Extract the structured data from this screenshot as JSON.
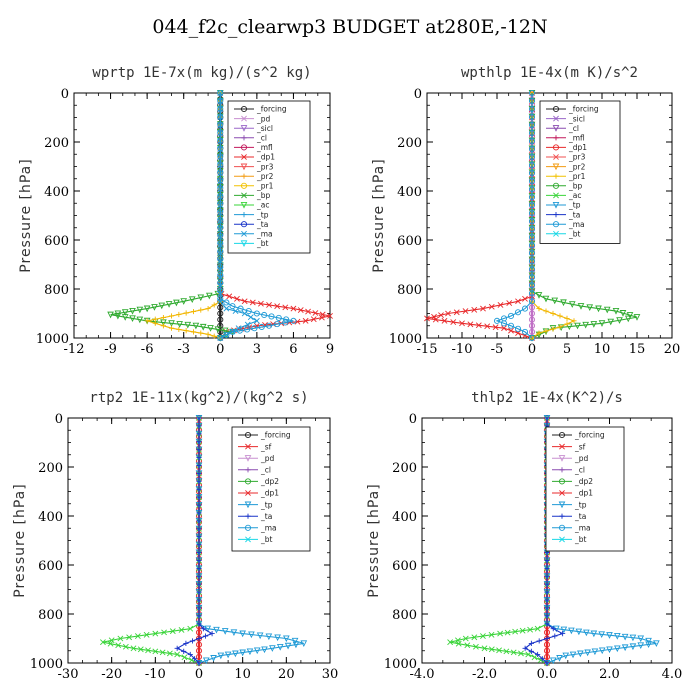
{
  "page": {
    "title": "044_f2c_clearwp3  BUDGET at280E,-12N"
  },
  "chart_data": [
    {
      "type": "line",
      "title": "wprtp   1E-7x(m kg)/(s^2 kg)",
      "ylabel": "Pressure [hPa]",
      "xlim": [
        -12,
        9
      ],
      "ylim": [
        1000,
        0
      ],
      "xticks": [
        -12,
        -9,
        -6,
        -3,
        0,
        3,
        6,
        9
      ],
      "xtick_labels": [
        "-12",
        "-9",
        "-6",
        "-3",
        "0",
        "3",
        "6",
        "9"
      ],
      "yticks": [
        0,
        200,
        400,
        600,
        800,
        1000
      ],
      "ytick_labels": [
        "0",
        "200",
        "400",
        "600",
        "800",
        "1000"
      ],
      "legend_position": "top-right",
      "legend": [
        "_forcing",
        "_pd",
        "_sicl",
        "_cl",
        "_mfl",
        "_dp1",
        "_pr3",
        "_pr2",
        "_pr1",
        "_bp",
        "_ac",
        "_tp",
        "_ta",
        "_ma",
        "_bt"
      ],
      "series": [
        {
          "name": "_forcing",
          "color": "#222222",
          "x": [
            0,
            0,
            0,
            0,
            0,
            0,
            0,
            0,
            0,
            0,
            0,
            0
          ],
          "y": [
            0,
            100,
            200,
            300,
            400,
            500,
            600,
            700,
            800,
            900,
            950,
            1000
          ]
        },
        {
          "name": "_dp1",
          "color": "#e8292b",
          "x": [
            0,
            0,
            0.1,
            2,
            6,
            9,
            7,
            3,
            0.5,
            0
          ],
          "y": [
            0,
            800,
            820,
            850,
            880,
            910,
            930,
            950,
            975,
            1000
          ]
        },
        {
          "name": "_bp",
          "color": "#2faa2f",
          "x": [
            0,
            0,
            -0.2,
            -3,
            -6,
            -9,
            -6,
            -2,
            1,
            0
          ],
          "y": [
            0,
            800,
            820,
            850,
            880,
            905,
            930,
            950,
            975,
            1000
          ]
        },
        {
          "name": "_pr1",
          "color": "#f2b600",
          "x": [
            0,
            0,
            -1,
            -4,
            -6,
            -4,
            -1,
            0
          ],
          "y": [
            0,
            850,
            880,
            910,
            930,
            960,
            985,
            1000
          ]
        },
        {
          "name": "_tp",
          "color": "#1f9ad6",
          "x": [
            0,
            0,
            1,
            3,
            6,
            4,
            1,
            0
          ],
          "y": [
            0,
            840,
            870,
            900,
            930,
            950,
            975,
            1000
          ]
        },
        {
          "name": "_ma",
          "color": "#1f9ad6",
          "x": [
            0,
            0,
            0.5,
            2,
            3,
            1.5,
            0
          ],
          "y": [
            0,
            850,
            880,
            900,
            930,
            960,
            1000
          ]
        }
      ]
    },
    {
      "type": "line",
      "title": "wpthlp   1E-4x(m K)/s^2",
      "ylabel": "Pressure [hPa]",
      "xlim": [
        -15,
        20
      ],
      "ylim": [
        1000,
        0
      ],
      "xticks": [
        -15,
        -10,
        -5,
        0,
        5,
        10,
        15,
        20
      ],
      "xtick_labels": [
        "-15",
        "-10",
        "-5",
        "0",
        "5",
        "10",
        "15",
        "20"
      ],
      "yticks": [
        0,
        200,
        400,
        600,
        800,
        1000
      ],
      "ytick_labels": [
        "0",
        "200",
        "400",
        "600",
        "800",
        "1000"
      ],
      "legend_position": "top-right",
      "legend": [
        "_forcing",
        "_sicl",
        "_cl",
        "_mfl",
        "_dp1",
        "_pr3",
        "_pr2",
        "_pr1",
        "_bp",
        "_ac",
        "_tp",
        "_ta",
        "_ma",
        "_bt"
      ],
      "series": [
        {
          "name": "_forcing",
          "color": "#c071c6",
          "x": [
            0,
            0,
            0,
            0,
            0,
            0,
            0,
            0,
            0,
            0,
            0,
            0
          ],
          "y": [
            0,
            100,
            200,
            300,
            400,
            500,
            600,
            700,
            800,
            900,
            950,
            1000
          ]
        },
        {
          "name": "_dp1",
          "color": "#e8292b",
          "x": [
            0,
            0,
            -2,
            -7,
            -12,
            -15,
            -10,
            -4,
            0
          ],
          "y": [
            0,
            830,
            850,
            880,
            900,
            920,
            940,
            960,
            1000
          ]
        },
        {
          "name": "_bp",
          "color": "#2faa2f",
          "x": [
            0,
            0,
            2,
            7,
            12,
            15,
            10,
            3,
            0
          ],
          "y": [
            0,
            810,
            840,
            870,
            890,
            915,
            940,
            960,
            1000
          ]
        },
        {
          "name": "_pr1",
          "color": "#f2b600",
          "x": [
            0,
            0,
            1,
            4,
            6,
            4,
            1,
            0
          ],
          "y": [
            0,
            850,
            880,
            910,
            930,
            955,
            980,
            1000
          ]
        },
        {
          "name": "_tp",
          "color": "#1f9ad6",
          "x": [
            0,
            0,
            -1,
            -3,
            -5,
            -3,
            -1,
            0
          ],
          "y": [
            0,
            850,
            880,
            910,
            930,
            950,
            975,
            1000
          ]
        }
      ]
    },
    {
      "type": "line",
      "title": "rtp2   1E-11x(kg^2)/(kg^2 s)",
      "ylabel": "Pressure [hPa]",
      "xlim": [
        -30,
        30
      ],
      "ylim": [
        1000,
        0
      ],
      "xticks": [
        -30,
        -20,
        -10,
        0,
        10,
        20,
        30
      ],
      "xtick_labels": [
        "-30",
        "-20",
        "-10",
        "0",
        "10",
        "20",
        "30"
      ],
      "yticks": [
        0,
        200,
        400,
        600,
        800,
        1000
      ],
      "ytick_labels": [
        "0",
        "200",
        "400",
        "600",
        "800",
        "1000"
      ],
      "legend_position": "top-right",
      "legend": [
        "_forcing",
        "_sf",
        "_pd",
        "_cl",
        "_dp2",
        "_dp1",
        "_tp",
        "_ta",
        "_ma",
        "_bt"
      ],
      "series": [
        {
          "name": "_forcing",
          "color": "#e8292b",
          "x": [
            0,
            0,
            0,
            0,
            0,
            0,
            0,
            0,
            0,
            0,
            0,
            0
          ],
          "y": [
            0,
            100,
            200,
            300,
            400,
            500,
            600,
            700,
            800,
            900,
            950,
            1000
          ]
        },
        {
          "name": "_dp1",
          "color": "#39d439",
          "x": [
            0,
            0,
            -2,
            -10,
            -18,
            -22,
            -15,
            -5,
            0
          ],
          "y": [
            0,
            840,
            860,
            880,
            900,
            915,
            940,
            965,
            1000
          ]
        },
        {
          "name": "_tp",
          "color": "#1f9ad6",
          "x": [
            0,
            0,
            2,
            10,
            20,
            24,
            15,
            5,
            0
          ],
          "y": [
            0,
            840,
            860,
            880,
            900,
            920,
            945,
            970,
            1000
          ]
        },
        {
          "name": "_ta",
          "color": "#1833c8",
          "x": [
            0,
            0,
            1,
            3,
            0,
            -3,
            -5,
            -2,
            0
          ],
          "y": [
            0,
            840,
            860,
            880,
            900,
            920,
            940,
            965,
            1000
          ]
        }
      ]
    },
    {
      "type": "line",
      "title": "thlp2   1E-4x(K^2)/s",
      "ylabel": "Pressure [hPa]",
      "xlim": [
        -4,
        4
      ],
      "ylim": [
        1000,
        0
      ],
      "xticks": [
        -4,
        -2,
        0,
        2,
        4
      ],
      "xtick_labels": [
        "-4.0",
        "-2.0",
        "0.0",
        "2.0",
        "4.0"
      ],
      "yticks": [
        0,
        200,
        400,
        600,
        800,
        1000
      ],
      "ytick_labels": [
        "0",
        "200",
        "400",
        "600",
        "800",
        "1000"
      ],
      "legend_position": "top-right",
      "legend": [
        "_forcing",
        "_sf",
        "_pd",
        "_cl",
        "_dp2",
        "_dp1",
        "_tp",
        "_ta",
        "_ma",
        "_bt"
      ],
      "series": [
        {
          "name": "_forcing",
          "color": "#e8292b",
          "x": [
            0,
            0,
            0,
            0,
            0,
            0,
            0,
            0,
            0,
            0,
            0,
            0
          ],
          "y": [
            0,
            100,
            200,
            300,
            400,
            500,
            600,
            700,
            800,
            900,
            950,
            1000
          ]
        },
        {
          "name": "_dp1",
          "color": "#39d439",
          "x": [
            0,
            0,
            -0.3,
            -1.5,
            -2.6,
            -3.1,
            -2,
            -0.6,
            0
          ],
          "y": [
            0,
            840,
            860,
            880,
            900,
            915,
            940,
            965,
            1000
          ]
        },
        {
          "name": "_tp",
          "color": "#1f9ad6",
          "x": [
            0,
            0,
            0.3,
            1.5,
            3,
            3.5,
            2,
            0.6,
            0
          ],
          "y": [
            0,
            840,
            860,
            880,
            900,
            920,
            945,
            970,
            1000
          ]
        },
        {
          "name": "_ta",
          "color": "#1833c8",
          "x": [
            0,
            0,
            0.2,
            0.5,
            0,
            -0.5,
            -0.7,
            -0.3,
            0
          ],
          "y": [
            0,
            840,
            860,
            880,
            900,
            920,
            940,
            965,
            1000
          ]
        }
      ]
    }
  ],
  "legend_colors": {
    "_forcing": "#222222",
    "_pd": "#c88fd0",
    "_sicl": "#9a66c8",
    "_cl": "#8a4bb0",
    "_mfl": "#c2185b",
    "_dp1": "#e8292b",
    "_pr3": "#f05050",
    "_pr2": "#f39c12",
    "_pr1": "#f2c200",
    "_bp": "#2faa2f",
    "_ac": "#39d439",
    "_tp": "#1f9ad6",
    "_ta": "#1833c8",
    "_ma": "#1f9ad6",
    "_bt": "#17d7e6",
    "_sf": "#e8292b",
    "_dp2": "#2faa2f"
  }
}
